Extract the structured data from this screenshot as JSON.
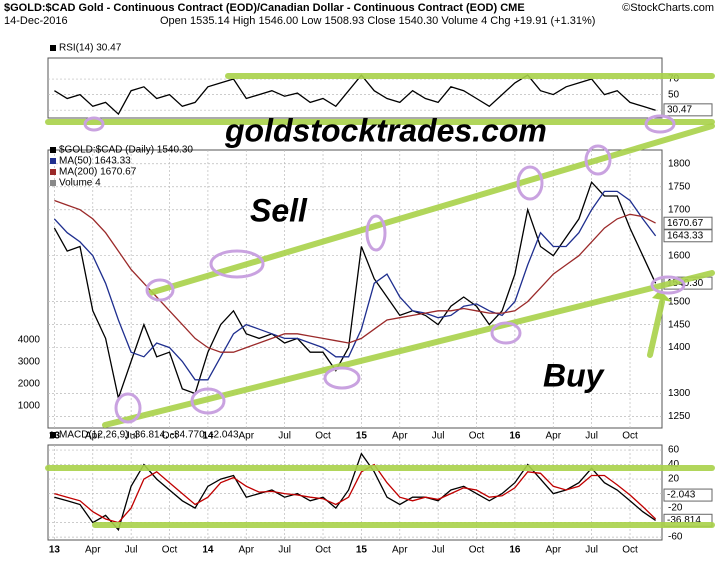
{
  "header": {
    "title": "$GOLD:$CAD Gold - Continuous Contract (EOD)/Canadian Dollar - Continuous Contract (EOD) CME",
    "date": "14-Dec-2016",
    "quote": "Open 1535.14 High 1546.00 Low 1508.93 Close 1540.30 Volume 4 Chg +19.91 (+1.31%)",
    "source": "©StockCharts.com"
  },
  "overlay": {
    "site": "goldstocktrades.com",
    "sell": "Sell",
    "buy": "Buy"
  },
  "chart_data": [
    {
      "type": "line",
      "legend": [
        "RSI(14) 30.47"
      ],
      "series": [
        {
          "name": "RSI(14)",
          "color": "#000000",
          "values": [
            55,
            45,
            50,
            35,
            40,
            25,
            55,
            60,
            45,
            50,
            35,
            40,
            60,
            65,
            70,
            45,
            50,
            55,
            48,
            52,
            40,
            45,
            35,
            55,
            75,
            55,
            45,
            40,
            55,
            45,
            40,
            60,
            55,
            45,
            35,
            50,
            65,
            75,
            55,
            50,
            60,
            65,
            70,
            50,
            55,
            40,
            35,
            30
          ]
        }
      ],
      "ylim": [
        20,
        97
      ],
      "yticks": [
        30,
        50,
        70
      ],
      "axis_tags": [
        30.47
      ],
      "grid": true
    },
    {
      "type": "line",
      "legend": [
        "$GOLD:$CAD (Daily) 1540.30",
        "MA(50) 1643.33",
        "MA(200) 1670.67",
        "Volume 4"
      ],
      "categories": [
        "13",
        null,
        null,
        "Apr",
        null,
        null,
        "Jul",
        null,
        null,
        "Oct",
        null,
        null,
        "14",
        null,
        null,
        "Apr",
        null,
        null,
        "Jul",
        null,
        null,
        "Oct",
        null,
        null,
        "15",
        null,
        null,
        "Apr",
        null,
        null,
        "Jul",
        null,
        null,
        "Oct",
        null,
        null,
        "16",
        null,
        null,
        "Apr",
        null,
        null,
        "Jul",
        null,
        null,
        "Oct",
        null,
        null
      ],
      "series": [
        {
          "name": "$GOLD:$CAD (Daily)",
          "color": "#000000",
          "values": [
            1660,
            1610,
            1620,
            1480,
            1420,
            1290,
            1370,
            1450,
            1380,
            1390,
            1310,
            1300,
            1390,
            1450,
            1480,
            1430,
            1420,
            1430,
            1410,
            1420,
            1390,
            1390,
            1350,
            1400,
            1620,
            1550,
            1510,
            1470,
            1480,
            1470,
            1450,
            1490,
            1510,
            1490,
            1450,
            1480,
            1560,
            1700,
            1620,
            1600,
            1640,
            1680,
            1760,
            1730,
            1730,
            1660,
            1600,
            1540
          ]
        },
        {
          "name": "MA(50)",
          "color": "#1f2f8f",
          "values": [
            1680,
            1650,
            1630,
            1600,
            1540,
            1460,
            1390,
            1380,
            1410,
            1400,
            1370,
            1330,
            1330,
            1380,
            1430,
            1450,
            1440,
            1430,
            1420,
            1420,
            1410,
            1400,
            1380,
            1380,
            1440,
            1540,
            1560,
            1510,
            1480,
            1475,
            1465,
            1470,
            1490,
            1495,
            1480,
            1470,
            1500,
            1580,
            1650,
            1620,
            1620,
            1650,
            1700,
            1740,
            1740,
            1720,
            1680,
            1643
          ]
        },
        {
          "name": "MA(200)",
          "color": "#9b2a2a",
          "values": [
            1720,
            1710,
            1700,
            1680,
            1650,
            1610,
            1570,
            1540,
            1510,
            1480,
            1450,
            1420,
            1400,
            1390,
            1390,
            1400,
            1410,
            1420,
            1430,
            1430,
            1425,
            1420,
            1415,
            1410,
            1420,
            1440,
            1460,
            1465,
            1470,
            1475,
            1480,
            1480,
            1485,
            1480,
            1475,
            1475,
            1480,
            1500,
            1530,
            1560,
            1580,
            1600,
            1630,
            1660,
            1680,
            1690,
            1685,
            1671
          ]
        }
      ],
      "ylim": [
        1225,
        1830
      ],
      "yticks": [
        1250,
        1300,
        1400,
        1450,
        1500,
        1600,
        1700,
        1750,
        1800
      ],
      "y2lim": [
        0,
        12600
      ],
      "y2ticks": [
        1000,
        2000,
        3000,
        4000
      ],
      "axis_tags": [
        1670.67,
        1643.33,
        {
          "value": 1540.3,
          "label": "1540.30"
        }
      ],
      "grid": true
    },
    {
      "type": "line",
      "legend": [
        "MACD(12,26,9) -36.814, -34.770, -2.043"
      ],
      "categories": [
        "13",
        null,
        null,
        "Apr",
        null,
        null,
        "Jul",
        null,
        null,
        "Oct",
        null,
        null,
        "14",
        null,
        null,
        "Apr",
        null,
        null,
        "Jul",
        null,
        null,
        "Oct",
        null,
        null,
        "15",
        null,
        null,
        "Apr",
        null,
        null,
        "Jul",
        null,
        null,
        "Oct",
        null,
        null,
        "16",
        null,
        null,
        "Apr",
        null,
        null,
        "Jul",
        null,
        null,
        "Oct",
        null,
        null
      ],
      "series": [
        {
          "name": "MACD",
          "color": "#000000",
          "values": [
            -5,
            -10,
            -15,
            -40,
            -30,
            -50,
            10,
            40,
            20,
            5,
            -10,
            -20,
            10,
            20,
            25,
            -5,
            0,
            5,
            -5,
            0,
            -10,
            -5,
            -20,
            5,
            55,
            30,
            -5,
            -15,
            -5,
            -5,
            -10,
            5,
            10,
            0,
            -10,
            0,
            15,
            40,
            20,
            0,
            5,
            15,
            35,
            15,
            5,
            -10,
            -25,
            -37
          ]
        },
        {
          "name": "Signal",
          "color": "#c00000",
          "values": [
            0,
            -5,
            -10,
            -25,
            -35,
            -40,
            -20,
            20,
            30,
            15,
            0,
            -15,
            -5,
            15,
            22,
            10,
            2,
            3,
            0,
            -2,
            -5,
            -7,
            -15,
            -5,
            30,
            40,
            15,
            -5,
            -10,
            -5,
            -8,
            0,
            8,
            5,
            -5,
            -3,
            8,
            30,
            28,
            10,
            5,
            10,
            25,
            25,
            12,
            -2,
            -18,
            -35
          ]
        }
      ],
      "ylim": [
        -64,
        67
      ],
      "yticks": [
        -60,
        -40,
        -20,
        0,
        20,
        40,
        60
      ],
      "axis_tags": [
        -2.043,
        -36.814
      ],
      "grid": true
    }
  ]
}
